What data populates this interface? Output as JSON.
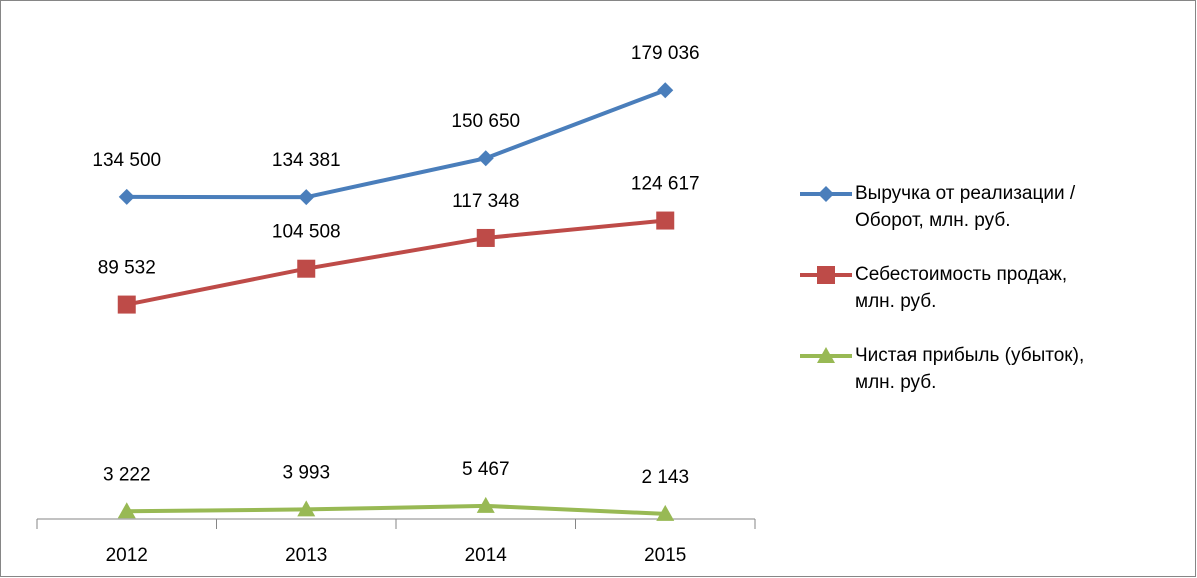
{
  "chart_data": {
    "type": "line",
    "categories": [
      "2012",
      "2013",
      "2014",
      "2015"
    ],
    "series": [
      {
        "name": "Выручка от реализации / Оборот, млн. руб.",
        "color": "#4a7ebb",
        "marker": "diamond",
        "values": [
          134500,
          134381,
          150650,
          179036
        ],
        "value_labels": [
          "134 500",
          "134 381",
          "150 650",
          "179 036"
        ]
      },
      {
        "name": "Себестоимость продаж, млн. руб.",
        "color": "#be4b48",
        "marker": "square",
        "values": [
          89532,
          104508,
          117348,
          124617
        ],
        "value_labels": [
          "89 532",
          "104 508",
          "117 348",
          "124 617"
        ]
      },
      {
        "name": "Чистая прибыль (убыток), млн. руб.",
        "color": "#98b954",
        "marker": "triangle",
        "values": [
          3222,
          3993,
          5467,
          2143
        ],
        "value_labels": [
          "3 222",
          "3 993",
          "5 467",
          "2 143"
        ]
      }
    ],
    "ylim": [
      0,
      200000
    ],
    "legend": "right"
  }
}
